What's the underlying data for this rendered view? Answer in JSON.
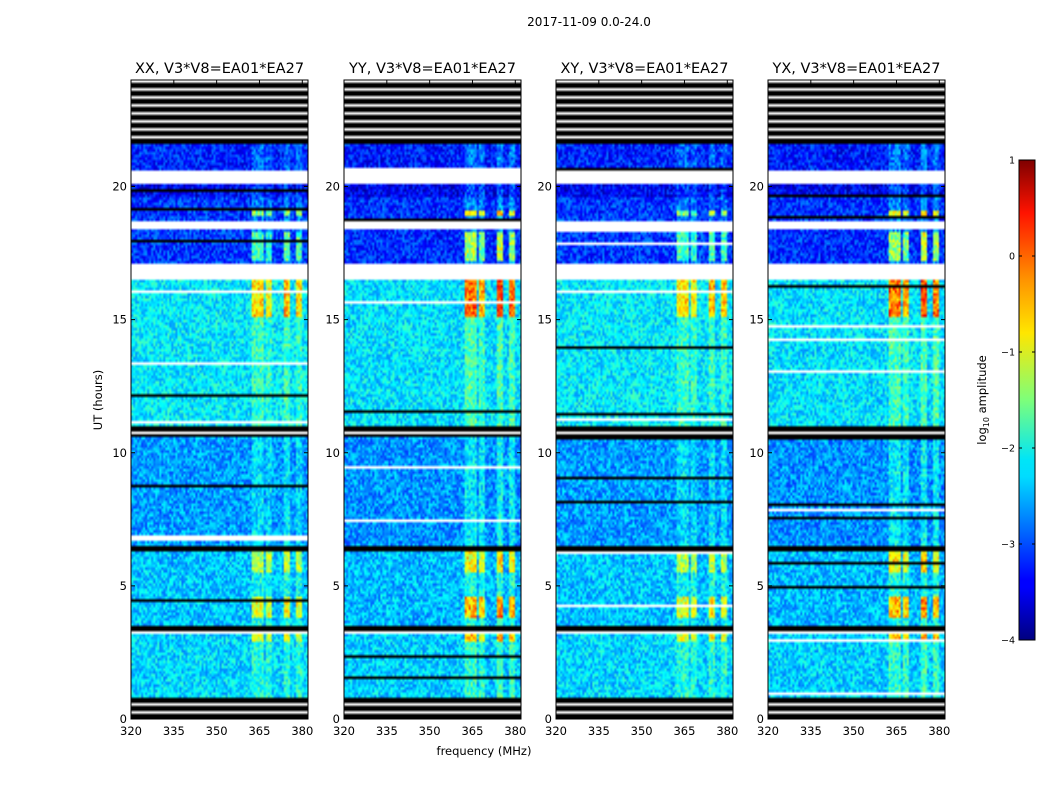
{
  "suptitle": "2017-11-09 0.0-24.0",
  "colors": {
    "background": "#ffffff",
    "blank_rows": "#ffffff",
    "flagged_rows": "#000000",
    "colormap": "jet"
  },
  "chart_data": {
    "type": "heatmap",
    "colormap": "jet",
    "xlabel": "frequency (MHz)",
    "ylabel": "UT (hours)",
    "xlim": [
      320,
      382
    ],
    "ylim": [
      0,
      24
    ],
    "xticks": [
      320,
      335,
      350,
      365,
      380
    ],
    "yticks": [
      0,
      5,
      10,
      15,
      20
    ],
    "colorbar": {
      "label": "log10 amplitude",
      "label_main": "log",
      "label_sub": "10",
      "label_rest": " amplitude",
      "range": [
        -4,
        1
      ],
      "ticks": [
        1,
        0,
        -1,
        -2,
        -3,
        -4
      ],
      "tick_labels": [
        "1",
        "0",
        "−1",
        "−2",
        "−3",
        "−4"
      ]
    },
    "panels": [
      {
        "title": "XX, V3*V8=EA01*EA27",
        "pol": "XX",
        "base": -2.55,
        "rfi": 0.75
      },
      {
        "title": "YY, V3*V8=EA01*EA27",
        "pol": "YY",
        "base": -2.6,
        "rfi": 1.05
      },
      {
        "title": "XY, V3*V8=EA01*EA27",
        "pol": "XY",
        "base": -2.55,
        "rfi": 0.75
      },
      {
        "title": "YX, V3*V8=EA01*EA27",
        "pol": "YX",
        "base": -2.6,
        "rfi": 1.05
      }
    ],
    "segments": [
      {
        "from": 0.0,
        "to": 0.85,
        "kind": "flagged"
      },
      {
        "from": 0.85,
        "to": 3.15,
        "kind": "data",
        "level": -2.3
      },
      {
        "from": 3.15,
        "to": 3.55,
        "kind": "flagged"
      },
      {
        "from": 3.55,
        "to": 6.3,
        "kind": "data",
        "level": -2.4
      },
      {
        "from": 6.3,
        "to": 6.55,
        "kind": "flagged"
      },
      {
        "from": 6.55,
        "to": 10.6,
        "kind": "data",
        "level": -2.6
      },
      {
        "from": 10.6,
        "to": 11.0,
        "kind": "flagged"
      },
      {
        "from": 11.0,
        "to": 16.5,
        "kind": "data",
        "level": -2.2
      },
      {
        "from": 16.5,
        "to": 17.1,
        "kind": "gap"
      },
      {
        "from": 17.1,
        "to": 18.4,
        "kind": "data",
        "level": -3.1
      },
      {
        "from": 18.4,
        "to": 18.7,
        "kind": "gap"
      },
      {
        "from": 18.7,
        "to": 19.6,
        "kind": "data",
        "level": -3.1
      },
      {
        "from": 19.6,
        "to": 20.1,
        "kind": "data",
        "level": -3.4
      },
      {
        "from": 20.1,
        "to": 20.6,
        "kind": "gap"
      },
      {
        "from": 20.6,
        "to": 21.6,
        "kind": "data",
        "level": -3.2
      },
      {
        "from": 21.6,
        "to": 24.0,
        "kind": "flagged"
      }
    ],
    "rfi_channels": [
      {
        "from": 362.0,
        "to": 366.5,
        "strength": 0.9
      },
      {
        "from": 367.5,
        "to": 369.0,
        "strength": 0.8
      },
      {
        "from": 373.5,
        "to": 376.0,
        "strength": 1.0
      },
      {
        "from": 377.5,
        "to": 380.0,
        "strength": 0.9
      }
    ],
    "rfi_bursts": [
      {
        "from": 15.1,
        "to": 16.5,
        "boost": 2.2
      },
      {
        "from": 3.8,
        "to": 4.6,
        "boost": 2.0
      },
      {
        "from": 5.5,
        "to": 6.3,
        "boost": 1.5
      },
      {
        "from": 17.2,
        "to": 18.3,
        "boost": 1.8
      },
      {
        "from": 18.9,
        "to": 19.1,
        "boost": 2.5
      },
      {
        "from": 2.9,
        "to": 3.15,
        "boost": 1.7
      }
    ]
  }
}
